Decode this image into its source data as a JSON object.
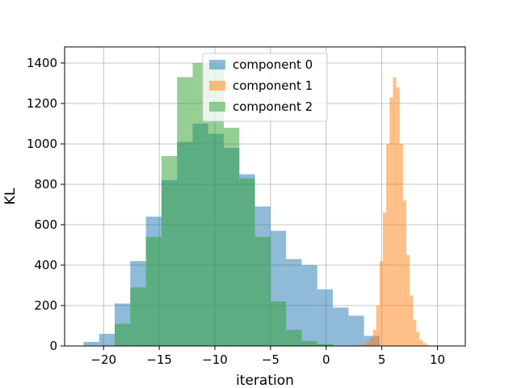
{
  "chart_data": {
    "type": "histogram",
    "title": "",
    "xlabel": "iteration",
    "ylabel": "KL",
    "xlim": [
      -23.5,
      12.5
    ],
    "ylim": [
      0,
      1480
    ],
    "xticks": [
      -20,
      -15,
      -10,
      -5,
      0,
      5,
      10
    ],
    "xtick_labels": [
      "−20",
      "−15",
      "−10",
      "−5",
      "0",
      "5",
      "10"
    ],
    "yticks": [
      0,
      200,
      400,
      600,
      800,
      1000,
      1200,
      1400
    ],
    "ytick_labels": [
      "0",
      "200",
      "400",
      "600",
      "800",
      "1000",
      "1200",
      "1400"
    ],
    "grid": true,
    "legend_position": "upper-center",
    "series": [
      {
        "name": "component 0",
        "color": "#1f77b4",
        "alpha": 0.5,
        "bin_edges": [
          -21.8,
          -20.4,
          -19.0,
          -17.6,
          -16.2,
          -14.8,
          -13.4,
          -12.0,
          -10.6,
          -9.2,
          -7.8,
          -6.4,
          -5.0,
          -3.6,
          -2.2,
          -0.8,
          0.6,
          2.0,
          3.4,
          4.8
        ],
        "counts": [
          20,
          60,
          210,
          420,
          640,
          820,
          1010,
          1100,
          1050,
          980,
          850,
          690,
          570,
          430,
          400,
          280,
          190,
          150,
          50
        ]
      },
      {
        "name": "component 1",
        "color": "#ff7f0e",
        "alpha": 0.5,
        "bin_edges": [
          3.0,
          3.3,
          3.6,
          3.9,
          4.2,
          4.5,
          4.8,
          5.1,
          5.4,
          5.7,
          6.0,
          6.3,
          6.6,
          6.9,
          7.2,
          7.5,
          7.8,
          8.1,
          8.4,
          8.7,
          9.0,
          9.3
        ],
        "counts": [
          5,
          10,
          20,
          40,
          80,
          200,
          420,
          660,
          1000,
          1230,
          1330,
          1280,
          1000,
          720,
          450,
          250,
          130,
          70,
          30,
          15,
          5
        ]
      },
      {
        "name": "component 2",
        "color": "#2ca02c",
        "alpha": 0.5,
        "bin_edges": [
          -19.0,
          -17.6,
          -16.2,
          -14.8,
          -13.4,
          -12.0,
          -10.6,
          -9.2,
          -7.8,
          -6.4,
          -5.0,
          -3.6,
          -2.2,
          -0.8,
          0.6
        ],
        "counts": [
          110,
          290,
          540,
          940,
          1330,
          1400,
          1400,
          1080,
          830,
          540,
          220,
          80,
          25,
          10
        ]
      }
    ]
  }
}
